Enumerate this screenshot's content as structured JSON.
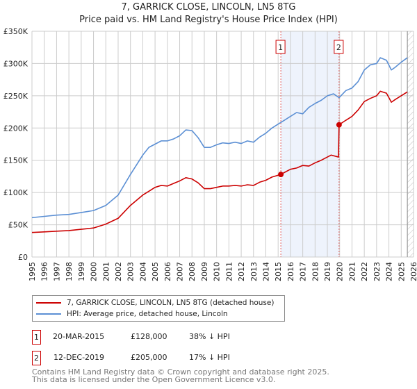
{
  "header": {
    "title": "7, GARRICK CLOSE, LINCOLN, LN5 8TG",
    "subtitle": "Price paid vs. HM Land Registry's House Price Index (HPI)"
  },
  "chart_data": {
    "type": "line",
    "title": "7, GARRICK CLOSE, LINCOLN, LN5 8TG",
    "subtitle": "Price paid vs. HM Land Registry's House Price Index (HPI)",
    "xlim": [
      1995,
      2026
    ],
    "ylim": [
      0,
      350000
    ],
    "x_ticks": [
      "1995",
      "1996",
      "1997",
      "1998",
      "1999",
      "2000",
      "2001",
      "2002",
      "2003",
      "2004",
      "2005",
      "2006",
      "2007",
      "2008",
      "2009",
      "2010",
      "2011",
      "2012",
      "2013",
      "2014",
      "2015",
      "2016",
      "2017",
      "2018",
      "2019",
      "2020",
      "2021",
      "2022",
      "2023",
      "2024",
      "2025",
      "2026"
    ],
    "y_ticks": [
      {
        "v": 0,
        "label": "£0"
      },
      {
        "v": 50000,
        "label": "£50K"
      },
      {
        "v": 100000,
        "label": "£100K"
      },
      {
        "v": 150000,
        "label": "£150K"
      },
      {
        "v": 200000,
        "label": "£200K"
      },
      {
        "v": 250000,
        "label": "£250K"
      },
      {
        "v": 300000,
        "label": "£300K"
      },
      {
        "v": 350000,
        "label": "£350K"
      }
    ],
    "grid": true,
    "shaded_range": [
      2015.22,
      2019.95
    ],
    "forecast_hatch_from": 2025.5,
    "series": [
      {
        "name": "7, GARRICK CLOSE, LINCOLN, LN5 8TG (detached house)",
        "color": "#cc0000",
        "x": [
          1995,
          1996,
          1997,
          1998,
          1999,
          2000,
          2001,
          2002,
          2003,
          2004,
          2004.5,
          2005,
          2005.5,
          2006,
          2006.5,
          2007,
          2007.5,
          2008,
          2008.5,
          2009,
          2009.5,
          2010,
          2010.5,
          2011,
          2011.5,
          2012,
          2012.5,
          2013,
          2013.5,
          2014,
          2014.5,
          2015.22,
          2015.5,
          2016,
          2016.5,
          2017,
          2017.5,
          2018,
          2018.5,
          2019,
          2019.3,
          2019.9,
          2019.95,
          2020.5,
          2021,
          2021.5,
          2022,
          2022.5,
          2023,
          2023.3,
          2023.8,
          2024.2,
          2024.5,
          2025,
          2025.5
        ],
        "y": [
          38000,
          39000,
          40000,
          41000,
          43000,
          45000,
          51000,
          60000,
          80000,
          96000,
          102000,
          108000,
          111000,
          110000,
          114000,
          118000,
          123000,
          121000,
          115000,
          106000,
          106000,
          108000,
          110000,
          110000,
          111000,
          110000,
          112000,
          111000,
          116000,
          119000,
          124000,
          128000,
          131000,
          136000,
          138000,
          142000,
          141000,
          146000,
          150000,
          155000,
          158000,
          155000,
          205000,
          212000,
          218000,
          228000,
          241000,
          246000,
          250000,
          257000,
          254000,
          240000,
          244000,
          250000,
          256000
        ]
      },
      {
        "name": "HPI: Average price, detached house, Lincoln",
        "color": "#5b8fd4",
        "x": [
          1995,
          1996,
          1997,
          1998,
          1999,
          2000,
          2001,
          2002,
          2003,
          2004,
          2004.5,
          2005,
          2005.5,
          2006,
          2006.5,
          2007,
          2007.5,
          2008,
          2008.5,
          2009,
          2009.5,
          2010,
          2010.5,
          2011,
          2011.5,
          2012,
          2012.5,
          2013,
          2013.5,
          2014,
          2014.5,
          2015,
          2015.5,
          2016,
          2016.5,
          2017,
          2017.5,
          2018,
          2018.5,
          2019,
          2019.5,
          2019.95,
          2020.5,
          2021,
          2021.5,
          2022,
          2022.5,
          2023,
          2023.3,
          2023.8,
          2024.2,
          2024.5,
          2025,
          2025.5
        ],
        "y": [
          61000,
          63000,
          65000,
          66000,
          69000,
          72000,
          80000,
          96000,
          128000,
          158000,
          170000,
          175000,
          180000,
          180000,
          183000,
          188000,
          197000,
          196000,
          185000,
          170000,
          170000,
          174000,
          177000,
          176000,
          178000,
          176000,
          180000,
          178000,
          186000,
          192000,
          200000,
          206000,
          212000,
          218000,
          224000,
          222000,
          232000,
          238000,
          243000,
          250000,
          253000,
          247000,
          258000,
          262000,
          272000,
          290000,
          298000,
          300000,
          309000,
          305000,
          290000,
          294000,
          302000,
          309000
        ]
      }
    ],
    "annotations": [
      {
        "label": "1",
        "x": 2015.22,
        "y": 128000
      },
      {
        "label": "2",
        "x": 2019.95,
        "y": 205000
      }
    ]
  },
  "legend": {
    "items": [
      {
        "label": "7, GARRICK CLOSE, LINCOLN, LN5 8TG (detached house)",
        "color": "#cc0000"
      },
      {
        "label": "HPI: Average price, detached house, Lincoln",
        "color": "#5b8fd4"
      }
    ]
  },
  "transactions": [
    {
      "num": "1",
      "date": "20-MAR-2015",
      "price": "£128,000",
      "hpi": "38% ↓ HPI"
    },
    {
      "num": "2",
      "date": "12-DEC-2019",
      "price": "£205,000",
      "hpi": "17% ↓ HPI"
    }
  ],
  "footer": {
    "line1": "Contains HM Land Registry data © Crown copyright and database right 2025.",
    "line2": "This data is licensed under the Open Government Licence v3.0."
  }
}
